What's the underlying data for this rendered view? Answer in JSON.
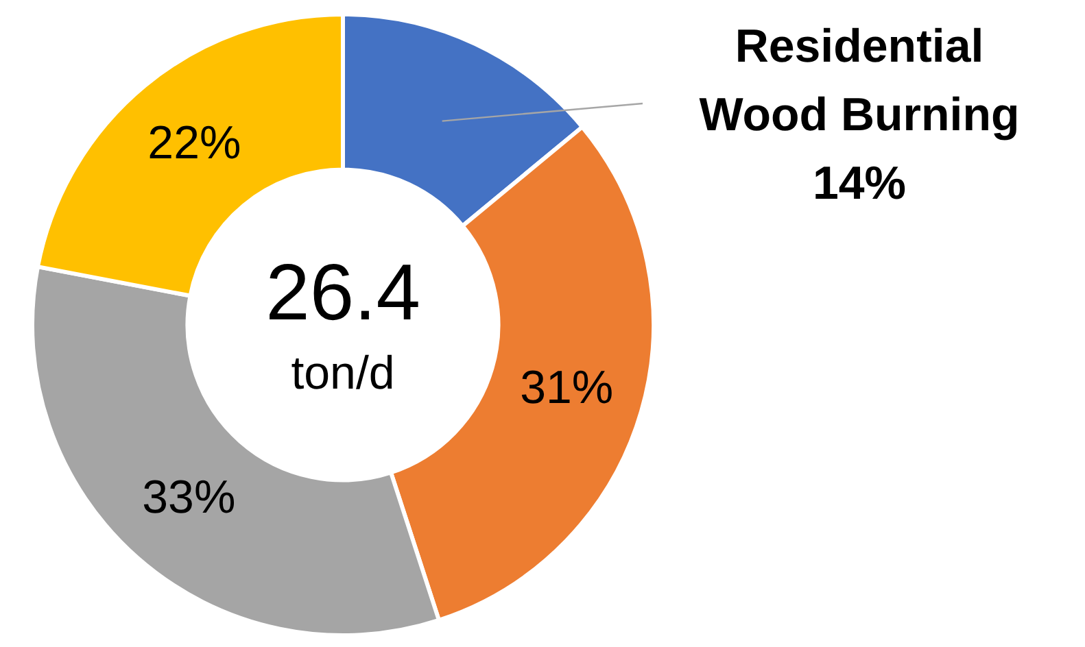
{
  "chart_data": {
    "type": "donut",
    "categories": [
      "Residential Wood Burning",
      null,
      null,
      null
    ],
    "values": [
      14,
      31,
      33,
      22
    ],
    "colors": [
      "#4472c4",
      "#ed7d31",
      "#a5a5a5",
      "#ffc000"
    ],
    "value_labels": [
      "14%",
      "31%",
      "33%",
      "22%"
    ],
    "annotations": [
      "26.4",
      "ton/d"
    ],
    "legend": false
  }
}
